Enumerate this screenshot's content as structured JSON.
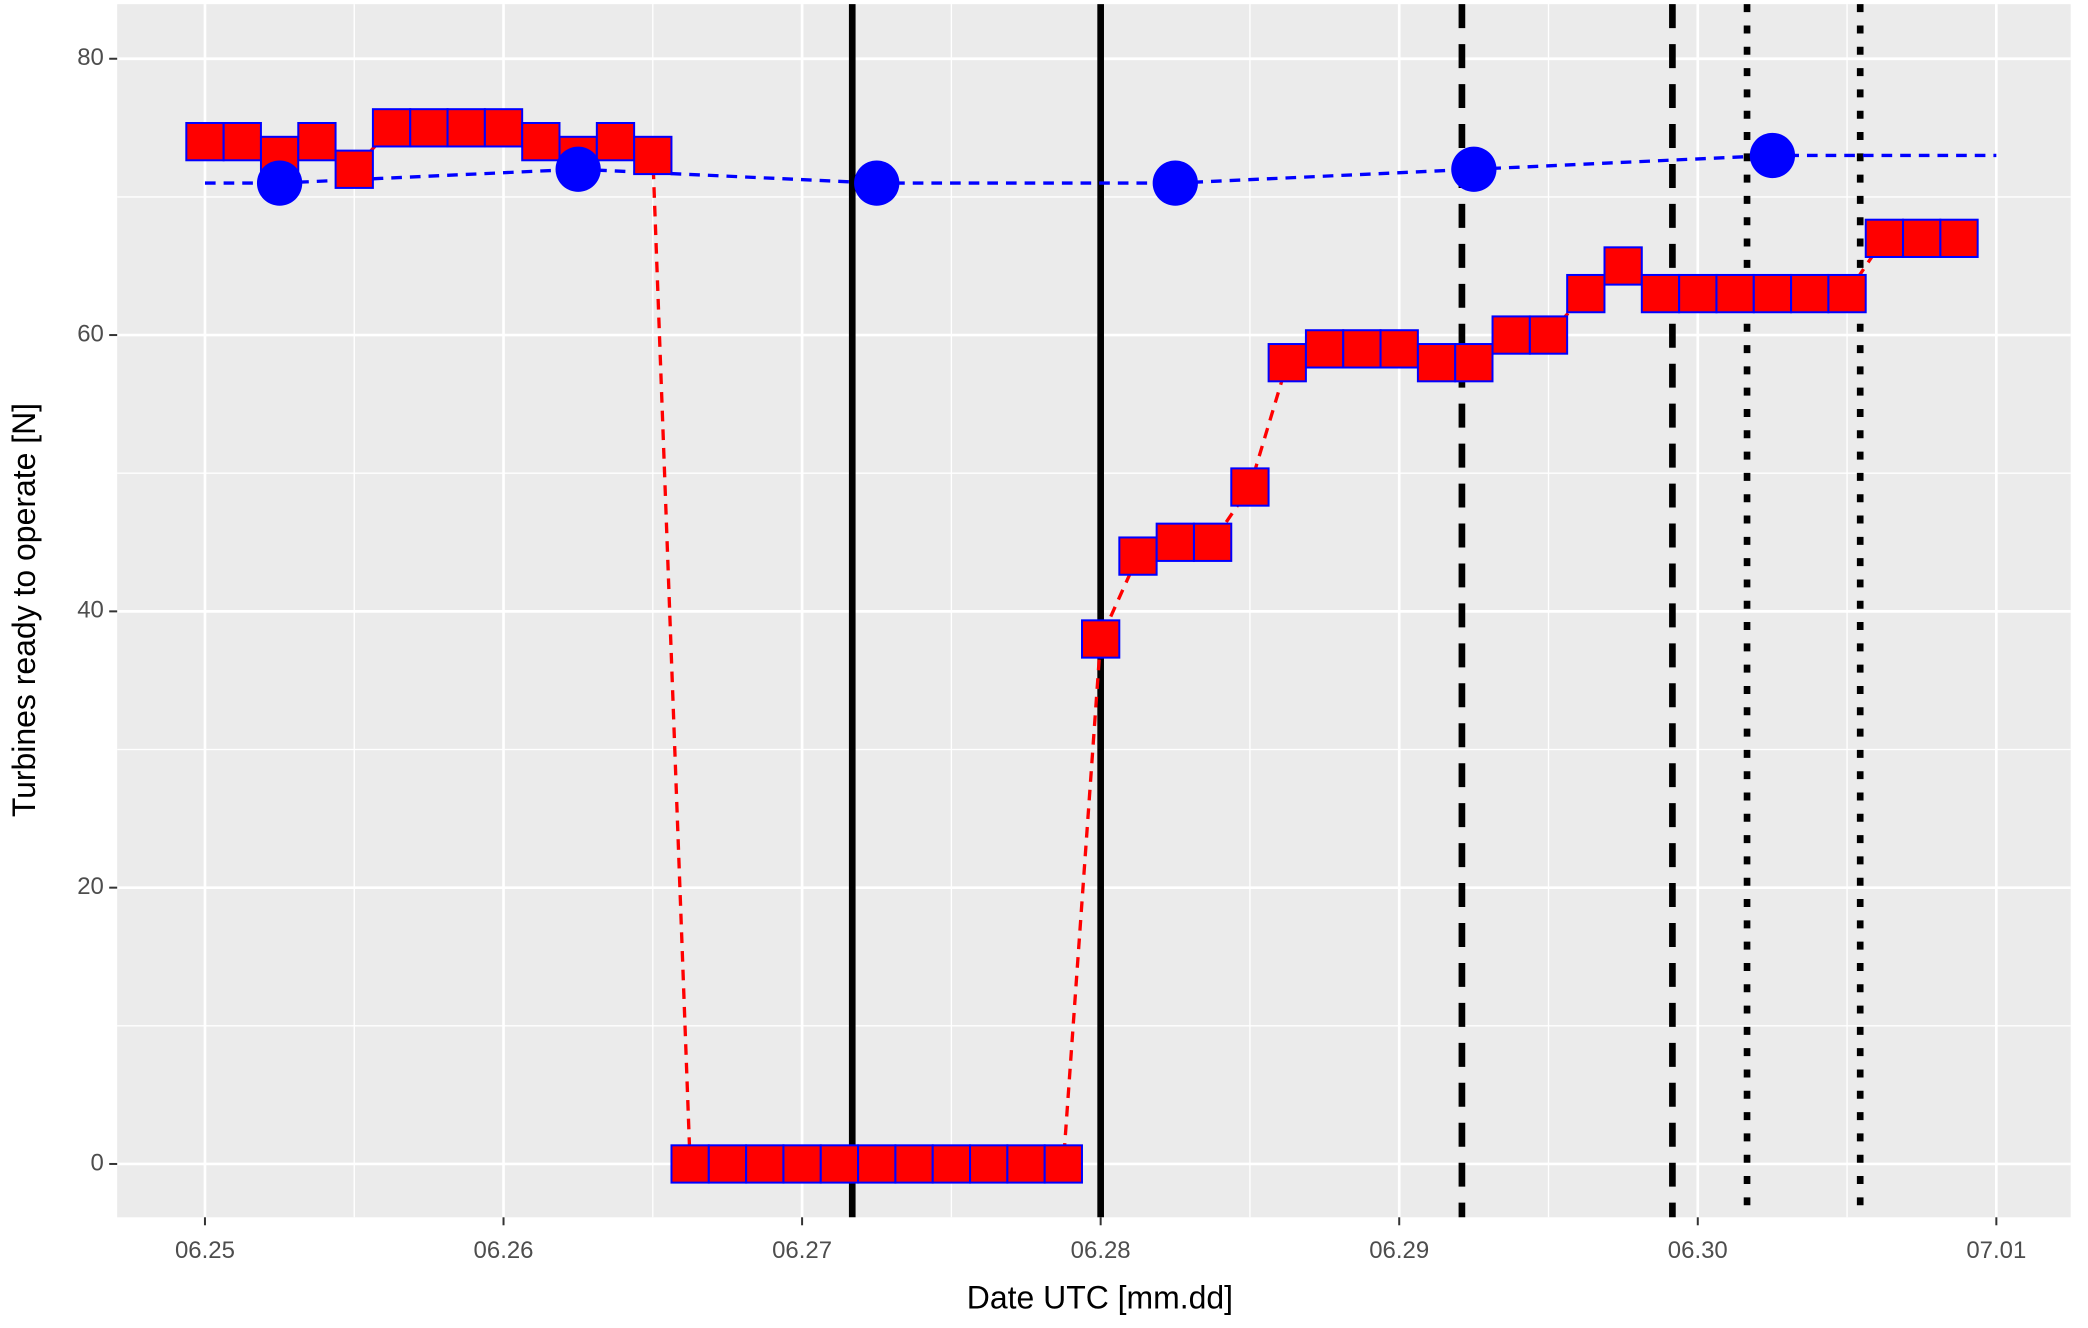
{
  "chart_data": {
    "type": "line",
    "x_label": "Date UTC [mm.dd]",
    "y_label": "Turbines ready to operate [N]",
    "xlim": [
      -0.294,
      6.249
    ],
    "ylim": [
      -3.86,
      83.95
    ],
    "xticks": [
      {
        "value": 0,
        "label": "06.25"
      },
      {
        "value": 1,
        "label": "06.26"
      },
      {
        "value": 2,
        "label": "06.27"
      },
      {
        "value": 3,
        "label": "06.28"
      },
      {
        "value": 4,
        "label": "06.29"
      },
      {
        "value": 5,
        "label": "06.30"
      },
      {
        "value": 6,
        "label": "07.01"
      }
    ],
    "yticks": [
      0,
      20,
      40,
      60,
      80
    ],
    "xminor": [
      0.5,
      1.5,
      2.5,
      3.5,
      4.5,
      5.5
    ],
    "yminor": [
      10,
      30,
      50,
      70
    ],
    "grid": true,
    "series": [
      {
        "color": "#ff0000",
        "marker": "square",
        "line": "dashed",
        "x": [
          0,
          0.125,
          0.25,
          0.375,
          0.5,
          0.625,
          0.75,
          0.875,
          1,
          1.125,
          1.25,
          1.375,
          1.5,
          1.625,
          1.75,
          1.875,
          2,
          2.125,
          2.25,
          2.375,
          2.5,
          2.625,
          2.75,
          2.875,
          3,
          3.125,
          3.25,
          3.375,
          3.5,
          3.625,
          3.75,
          3.875,
          4,
          4.125,
          4.25,
          4.375,
          4.5,
          4.625,
          4.75,
          4.875,
          5,
          5.125,
          5.25,
          5.375,
          5.5,
          5.625,
          5.75,
          5.875
        ],
        "values": [
          74,
          74,
          73,
          74,
          72,
          75,
          75,
          75,
          75,
          74,
          73,
          74,
          73,
          0,
          0,
          0,
          0,
          0,
          0,
          0,
          0,
          0,
          0,
          0,
          38,
          44,
          45,
          45,
          49,
          58,
          59,
          59,
          59,
          58,
          58,
          60,
          60,
          63,
          65,
          63,
          63,
          63,
          63,
          63,
          63,
          67,
          67,
          67
        ]
      },
      {
        "color": "#0000ff",
        "marker": "none",
        "line": "dashed",
        "x": [
          0,
          0.25,
          1.25,
          2.25,
          3.25,
          4.25,
          5.25,
          6
        ],
        "values": [
          71,
          71,
          72,
          71,
          71,
          72,
          73,
          73
        ]
      },
      {
        "color": "#0000ff",
        "marker": "circle",
        "line": "none",
        "x": [
          0.25,
          1.25,
          2.25,
          3.25,
          4.25,
          5.25
        ],
        "values": [
          71,
          72,
          71,
          71,
          72,
          73
        ]
      }
    ],
    "vlines": [
      {
        "x": 2.168,
        "style": "solid"
      },
      {
        "x": 3.0,
        "style": "solid"
      },
      {
        "x": 4.21,
        "style": "dashed"
      },
      {
        "x": 4.915,
        "style": "dashed"
      },
      {
        "x": 5.165,
        "style": "dotted"
      },
      {
        "x": 5.544,
        "style": "dotted"
      }
    ]
  }
}
